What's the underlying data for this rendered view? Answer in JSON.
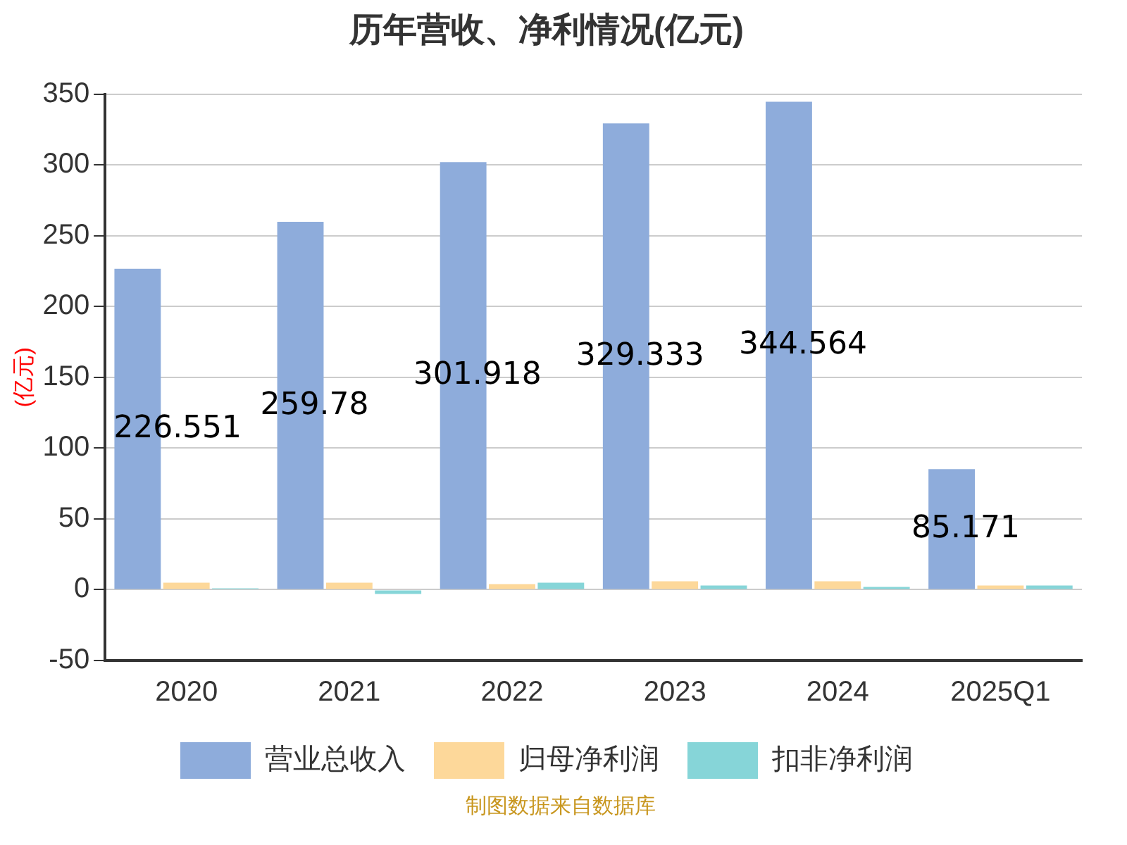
{
  "chart_data": {
    "type": "bar",
    "title": "历年营收、净利情况(亿元)",
    "ylabel": "(亿元)",
    "categories": [
      "2020",
      "2021",
      "2022",
      "2023",
      "2024",
      "2025Q1"
    ],
    "series": [
      {
        "name": "营业总收入",
        "color": "#8eacdb",
        "values": [
          226.551,
          259.78,
          301.918,
          329.333,
          344.564,
          85.171
        ],
        "value_labels": [
          "226.551",
          "259.78",
          "301.918",
          "329.333",
          "344.564",
          "85.171"
        ]
      },
      {
        "name": "归母净利润",
        "color": "#fdd89a",
        "values": [
          5,
          5,
          4,
          6,
          6,
          3
        ]
      },
      {
        "name": "扣非净利润",
        "color": "#86d5d8",
        "values": [
          1,
          -3,
          5,
          3,
          2,
          3
        ]
      }
    ],
    "ylim": [
      -50,
      350
    ],
    "yticks": [
      -50,
      0,
      50,
      100,
      150,
      200,
      250,
      300,
      350
    ],
    "grid": "y",
    "legend": "bottom",
    "annotations": [
      "制图数据来自数据库"
    ]
  }
}
